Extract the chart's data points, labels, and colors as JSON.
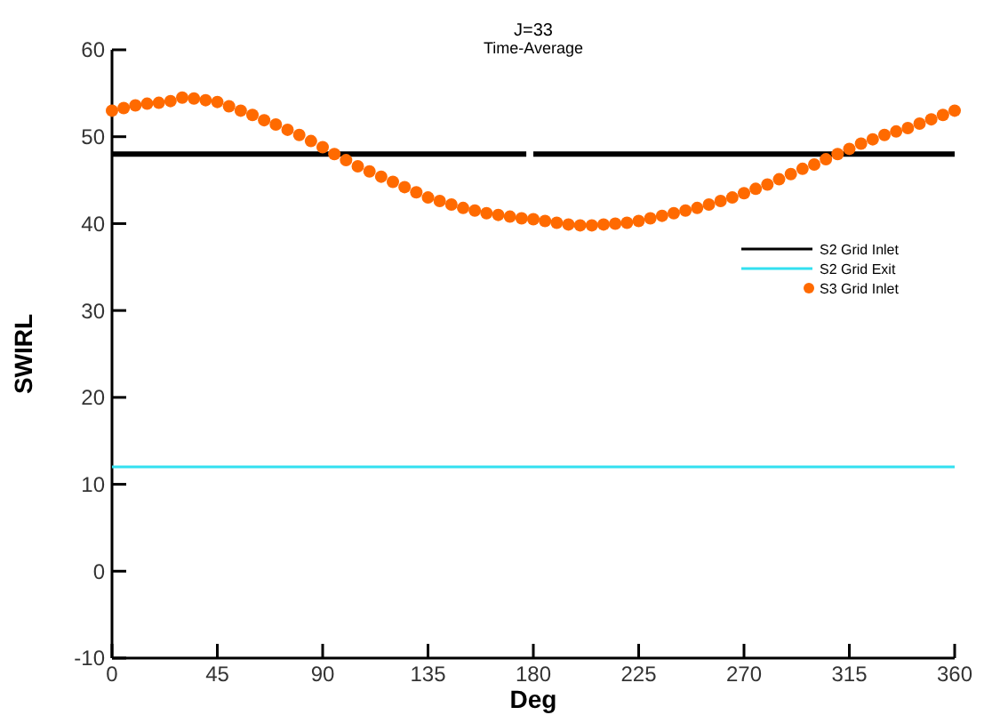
{
  "chart_data": {
    "type": "scatter",
    "title": "J=33",
    "subtitle": "Time-Average",
    "xlabel": "Deg",
    "ylabel": "SWIRL",
    "xlim": [
      0,
      360
    ],
    "ylim": [
      -10,
      60
    ],
    "xticks": [
      0,
      45,
      90,
      135,
      180,
      225,
      270,
      315,
      360
    ],
    "yticks": [
      -10,
      0,
      10,
      20,
      30,
      40,
      50,
      60
    ],
    "legend": "right",
    "grid": false,
    "series": [
      {
        "name": "S2 Grid Inlet",
        "type": "line",
        "color": "#000000",
        "x": [
          0,
          177,
          178,
          180,
          360
        ],
        "values": [
          48,
          48,
          null,
          48,
          48
        ]
      },
      {
        "name": "S2 Grid Exit",
        "type": "line",
        "color": "#33e0f0",
        "x": [
          0,
          360
        ],
        "values": [
          12,
          12
        ]
      },
      {
        "name": "S3 Grid Inlet",
        "color": "#ff6a00",
        "x": [
          0,
          5,
          10,
          15,
          20,
          25,
          30,
          35,
          40,
          45,
          50,
          55,
          60,
          65,
          70,
          75,
          80,
          85,
          90,
          95,
          100,
          105,
          110,
          115,
          120,
          125,
          130,
          135,
          140,
          145,
          150,
          155,
          160,
          165,
          170,
          175,
          180,
          185,
          190,
          195,
          200,
          205,
          210,
          215,
          220,
          225,
          230,
          235,
          240,
          245,
          250,
          255,
          260,
          265,
          270,
          275,
          280,
          285,
          290,
          295,
          300,
          305,
          310,
          315,
          320,
          325,
          330,
          335,
          340,
          345,
          350,
          355,
          360
        ],
        "values": [
          53,
          53.3,
          53.6,
          53.8,
          53.9,
          54.1,
          54.5,
          54.4,
          54.2,
          54,
          53.5,
          53,
          52.5,
          51.9,
          51.4,
          50.8,
          50.2,
          49.5,
          48.8,
          48,
          47.3,
          46.6,
          46,
          45.4,
          44.8,
          44.2,
          43.6,
          43,
          42.6,
          42.2,
          41.8,
          41.5,
          41.2,
          41,
          40.8,
          40.6,
          40.5,
          40.3,
          40.1,
          39.9,
          39.8,
          39.8,
          39.9,
          40,
          40.1,
          40.3,
          40.6,
          40.9,
          41.2,
          41.5,
          41.8,
          42.2,
          42.6,
          43,
          43.5,
          44,
          44.5,
          45.1,
          45.7,
          46.3,
          46.8,
          47.4,
          48,
          48.6,
          49.2,
          49.7,
          50.2,
          50.6,
          51,
          51.5,
          52,
          52.5,
          53
        ]
      }
    ]
  }
}
